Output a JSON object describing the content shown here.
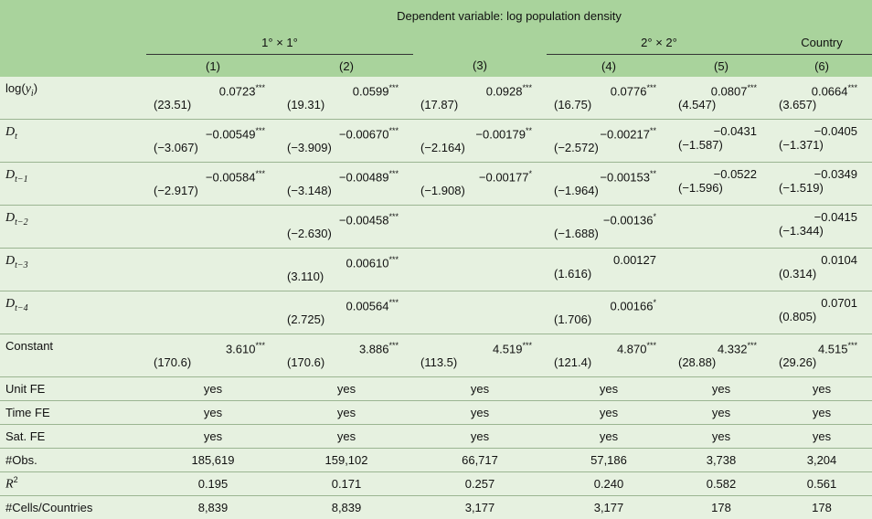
{
  "header": {
    "dependent_variable": "Dependent variable: log population density",
    "groups": [
      "1° × 1°",
      "2° × 2°",
      "Country"
    ],
    "columns": [
      "(1)",
      "(2)",
      "(3)",
      "(4)",
      "(5)",
      "(6)"
    ]
  },
  "rows": [
    {
      "label_html": "log(<i>y<sub><i>i</i></sub></i>)",
      "cells": [
        [
          "0.0723***",
          "(23.51)"
        ],
        [
          "0.0599***",
          "(19.31)"
        ],
        [
          "0.0928***",
          "(17.87)"
        ],
        [
          "0.0776***",
          "(16.75)"
        ],
        [
          "0.0807***",
          "(4.547)"
        ],
        [
          "0.0664***",
          "(3.657)"
        ]
      ]
    },
    {
      "label_html": "<i>D<sub><i>t</i></sub></i>",
      "cells": [
        [
          "−0.00549***",
          "(−3.067)"
        ],
        [
          "−0.00670***",
          "(−3.909)"
        ],
        [
          "−0.00179**",
          "(−2.164)"
        ],
        [
          "−0.00217**",
          "(−2.572)"
        ],
        [
          "−0.0431",
          "(−1.587)"
        ],
        [
          "−0.0405",
          "(−1.371)"
        ]
      ]
    },
    {
      "label_html": "<i>D<sub><i>t</i>−1</sub></i>",
      "cells": [
        [
          "−0.00584***",
          "(−2.917)"
        ],
        [
          "−0.00489***",
          "(−3.148)"
        ],
        [
          "−0.00177*",
          "(−1.908)"
        ],
        [
          "−0.00153**",
          "(−1.964)"
        ],
        [
          "−0.0522",
          "(−1.596)"
        ],
        [
          "−0.0349",
          "(−1.519)"
        ]
      ]
    },
    {
      "label_html": "<i>D<sub><i>t</i>−2</sub></i>",
      "cells": [
        [
          "",
          ""
        ],
        [
          "−0.00458***",
          "(−2.630)"
        ],
        [
          "",
          ""
        ],
        [
          "−0.00136*",
          "(−1.688)"
        ],
        [
          "",
          ""
        ],
        [
          "−0.0415",
          "(−1.344)"
        ]
      ]
    },
    {
      "label_html": "<i>D<sub><i>t</i>−3</sub></i>",
      "cells": [
        [
          "",
          ""
        ],
        [
          "0.00610***",
          "(3.110)"
        ],
        [
          "",
          ""
        ],
        [
          "0.00127",
          "(1.616)"
        ],
        [
          "",
          ""
        ],
        [
          "0.0104",
          "(0.314)"
        ]
      ]
    },
    {
      "label_html": "<i>D<sub><i>t</i>−4</sub></i>",
      "cells": [
        [
          "",
          ""
        ],
        [
          "0.00564***",
          "(2.725)"
        ],
        [
          "",
          ""
        ],
        [
          "0.00166*",
          "(1.706)"
        ],
        [
          "",
          ""
        ],
        [
          "0.0701",
          "(0.805)"
        ]
      ]
    },
    {
      "label_html": "Constant",
      "cells": [
        [
          "3.610***",
          "(170.6)"
        ],
        [
          "3.886***",
          "(170.6)"
        ],
        [
          "4.519***",
          "(113.5)"
        ],
        [
          "4.870***",
          "(121.4)"
        ],
        [
          "4.332***",
          "(28.88)"
        ],
        [
          "4.515***",
          "(29.26)"
        ]
      ]
    }
  ],
  "stats": [
    {
      "label_html": "Unit FE",
      "values": [
        "yes",
        "yes",
        "yes",
        "yes",
        "yes",
        "yes"
      ]
    },
    {
      "label_html": "Time FE",
      "values": [
        "yes",
        "yes",
        "yes",
        "yes",
        "yes",
        "yes"
      ]
    },
    {
      "label_html": "Sat. FE",
      "values": [
        "yes",
        "yes",
        "yes",
        "yes",
        "yes",
        "yes"
      ]
    },
    {
      "label_html": "#Obs.",
      "values": [
        "185,619",
        "159,102",
        "66,717",
        "57,186",
        "3,738",
        "3,204"
      ]
    },
    {
      "label_html": "<i>R</i><sup>2</sup>",
      "values": [
        "0.195",
        "0.171",
        "0.257",
        "0.240",
        "0.582",
        "0.561"
      ]
    },
    {
      "label_html": "#Cells/Countries",
      "values": [
        "8,839",
        "8,839",
        "3,177",
        "3,177",
        "178",
        "178"
      ]
    }
  ],
  "colors": {
    "header_bg": "#a9d39c",
    "body_bg": "#e6f1e0",
    "row_rule": "#9bb592"
  }
}
